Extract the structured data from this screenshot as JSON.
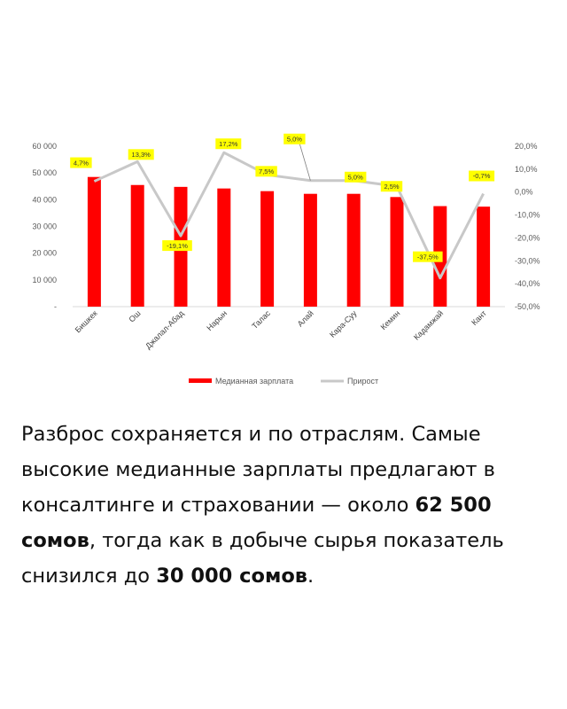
{
  "chart_data": {
    "type": "bar",
    "categories": [
      "Бишкек",
      "Ош",
      "Джалал-Абад",
      "Нарын",
      "Талас",
      "Алай",
      "Кара-Суу",
      "Кемин",
      "Кадамжай",
      "Кант"
    ],
    "series": [
      {
        "name": "Медианная зарплата",
        "type": "bar",
        "axis": "left",
        "color": "#ff0000",
        "values": [
          48500,
          45500,
          44800,
          44200,
          43200,
          42200,
          42200,
          41000,
          37600,
          37400
        ]
      },
      {
        "name": "Прирост",
        "type": "line",
        "axis": "right",
        "color": "#c8c8c8",
        "values": [
          4.7,
          13.3,
          -19.1,
          17.2,
          7.5,
          5.0,
          5.0,
          2.5,
          -37.5,
          -0.7
        ],
        "labels": [
          "4,7%",
          "13,3%",
          "-19,1%",
          "17,2%",
          "7,5%",
          "5,0%",
          "5,0%",
          "2,5%",
          "-37,5%",
          "-0,7%"
        ]
      }
    ],
    "y_left": {
      "ylim": [
        0,
        60000
      ],
      "ticks": [
        60000,
        50000,
        40000,
        30000,
        20000,
        10000,
        0
      ],
      "tick_labels": [
        "60 000",
        "50 000",
        "40 000",
        "30 000",
        "20 000",
        "10 000",
        "-"
      ]
    },
    "y_right": {
      "ylim": [
        -50,
        20
      ],
      "ticks": [
        20,
        10,
        0,
        -10,
        -20,
        -30,
        -40,
        -50
      ],
      "tick_labels": [
        "20,0%",
        "10,0%",
        "0,0%",
        "-10,0%",
        "-20,0%",
        "-30,0%",
        "-40,0%",
        "-50,0%"
      ]
    },
    "label_color": "#ffff00",
    "grid": false,
    "legend_position": "bottom"
  },
  "caption": {
    "part1": "Разброс сохраняется и по отраслям. Самые высокие медианные зарплаты предлагают в консалтинге и страховании — около ",
    "bold1": "62 500 сомов",
    "part2": ", тогда как в добыче сырья показатель снизился до ",
    "bold2": "30 000 сомов",
    "part3": "."
  }
}
